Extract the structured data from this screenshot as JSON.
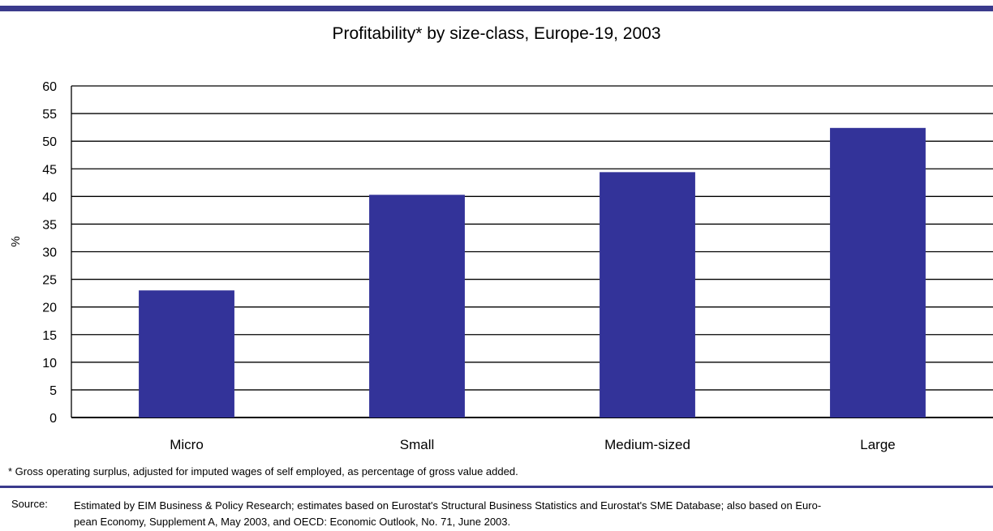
{
  "chart_data": {
    "type": "bar",
    "title": "Profitability* by size-class, Europe-19, 2003",
    "ylabel": "%",
    "xlabel": "",
    "categories": [
      "Micro",
      "Small",
      "Medium-sized",
      "Large"
    ],
    "values": [
      23,
      40.3,
      44.4,
      52.4
    ],
    "ylim": [
      0,
      60
    ],
    "yticks": [
      0,
      5,
      10,
      15,
      20,
      25,
      30,
      35,
      40,
      45,
      50,
      55,
      60
    ],
    "grid": true,
    "legend": "none",
    "bar_color": "#333399"
  },
  "footnote": "* Gross operating surplus, adjusted for imputed wages of self employed, as percentage of gross value added.",
  "source": {
    "label": "Source:",
    "lines": [
      "Estimated by EIM Business & Policy Research; estimates based on Eurostat's Structural Business Statistics and Eurostat's SME Database; also based on Euro-",
      "pean Economy, Supplement A, May 2003, and OECD: Economic Outlook, No. 71, June 2003."
    ]
  },
  "colors": {
    "accent_rule": "#3a3a8c",
    "bar": "#333399"
  }
}
